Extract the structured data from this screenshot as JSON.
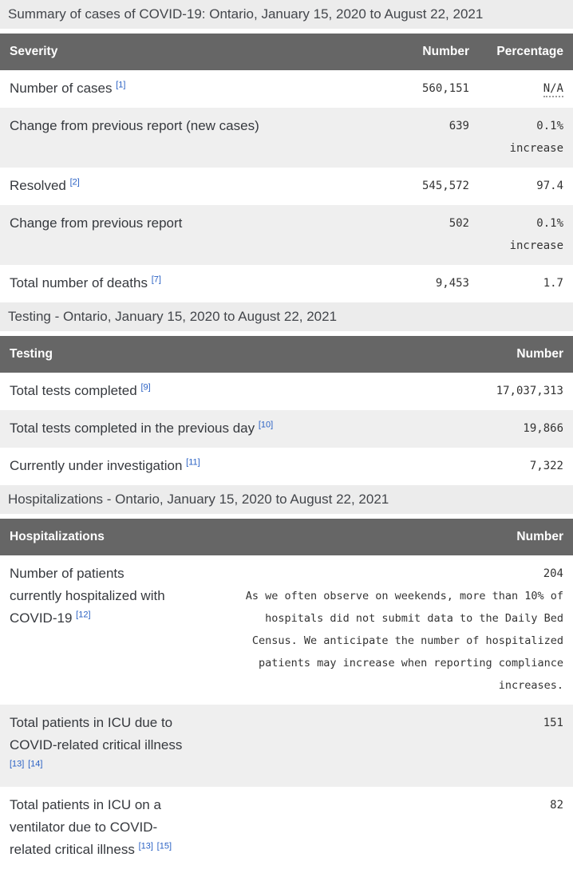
{
  "colors": {
    "table_header_bg": "#666666",
    "section_bar_bg": "#ececec",
    "row_stripe_bg": "#efefef",
    "footnote_link": "#2b62c4",
    "header_text": "#ffffff"
  },
  "summary_table": {
    "title": "Summary of cases of COVID-19: Ontario, January 15, 2020 to August 22, 2021",
    "headers": {
      "col1": "Severity",
      "col2": "Number",
      "col3": "Percentage"
    },
    "rows": [
      {
        "label": "Number of cases",
        "footnotes": [
          "[1]"
        ],
        "number": "560,151",
        "percentage": "N/A"
      },
      {
        "label": "Change from previous report (new cases)",
        "footnotes": [],
        "number": "639",
        "percentage": "0.1% increase"
      },
      {
        "label": "Resolved",
        "footnotes": [
          "[2]"
        ],
        "number": "545,572",
        "percentage": "97.4"
      },
      {
        "label": "Change from previous report",
        "footnotes": [],
        "number": "502",
        "percentage": "0.1% increase"
      },
      {
        "label": "Total number of deaths",
        "footnotes": [
          "[7]"
        ],
        "number": "9,453",
        "percentage": "1.7"
      }
    ]
  },
  "testing_table": {
    "title": "Testing - Ontario, January 15, 2020 to August 22, 2021",
    "headers": {
      "col1": "Testing",
      "col2": "Number"
    },
    "rows": [
      {
        "label": "Total tests completed",
        "footnotes": [
          "[9]"
        ],
        "number": "17,037,313"
      },
      {
        "label": "Total tests completed in the previous day",
        "footnotes": [
          "[10]"
        ],
        "number": "19,866"
      },
      {
        "label": "Currently under investigation",
        "footnotes": [
          "[11]"
        ],
        "number": "7,322"
      }
    ]
  },
  "hospitalizations_table": {
    "title": "Hospitalizations - Ontario, January 15, 2020 to August 22, 2021",
    "headers": {
      "col1": "Hospitalizations",
      "col2": "Number"
    },
    "rows": [
      {
        "label": "Number of patients currently hospitalized with COVID-19",
        "footnotes": [
          "[12]"
        ],
        "number": "204",
        "note": "As we often observe on weekends, more than 10% of hospitals did not submit data to the Daily Bed Census. We anticipate the number of hospitalized patients may increase when reporting compliance increases."
      },
      {
        "label": "Total patients in ICU due to COVID-related critical illness",
        "footnotes": [
          "[13]",
          "[14]"
        ],
        "number": "151"
      },
      {
        "label": "Total patients in ICU on a ventilator due to COVID-related critical illness",
        "footnotes": [
          "[13]",
          "[15]"
        ],
        "number": "82"
      }
    ]
  }
}
